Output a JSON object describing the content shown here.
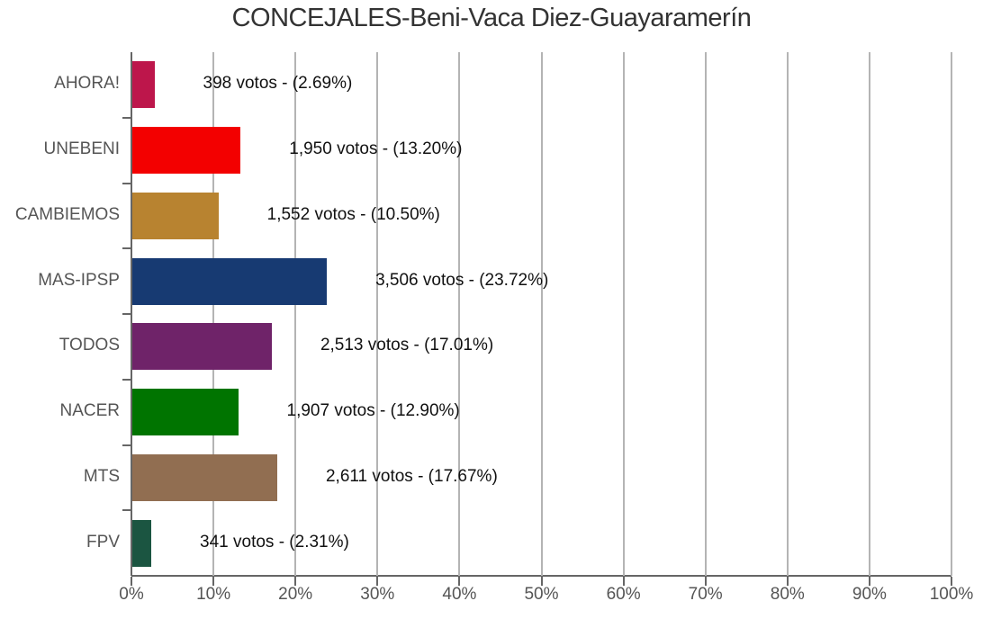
{
  "title": "CONCEJALES-Beni-Vaca Diez-Guayaramerín",
  "chart_data": {
    "type": "bar",
    "orientation": "horizontal",
    "title": "CONCEJALES-Beni-Vaca Diez-Guayaramerín",
    "xlabel": "",
    "ylabel": "",
    "xlim": [
      0,
      100
    ],
    "grid": true,
    "x_ticks": [
      "0%",
      "10%",
      "20%",
      "30%",
      "40%",
      "50%",
      "60%",
      "70%",
      "80%",
      "90%",
      "100%"
    ],
    "categories": [
      "AHORA!",
      "UNEBENI",
      "CAMBIEMOS",
      "MAS-IPSP",
      "TODOS",
      "NACER",
      "MTS",
      "FPV"
    ],
    "votes": [
      398,
      1950,
      1552,
      3506,
      2513,
      1907,
      2611,
      341
    ],
    "values": [
      2.69,
      13.2,
      10.5,
      23.72,
      17.01,
      12.9,
      17.67,
      2.31
    ],
    "colors": [
      "#bd164b",
      "#f30000",
      "#b88330",
      "#173a72",
      "#6f2369",
      "#007400",
      "#916e51",
      "#1b5541"
    ],
    "labels": [
      "398 votos - (2.69%)",
      "1,950 votos - (13.20%)",
      "1,552 votos - (10.50%)",
      "3,506 votos - (23.72%)",
      "2,513 votos - (17.01%)",
      "1,907 votos - (12.90%)",
      "2,611 votos - (17.67%)",
      "341 votos - (2.31%)"
    ]
  }
}
